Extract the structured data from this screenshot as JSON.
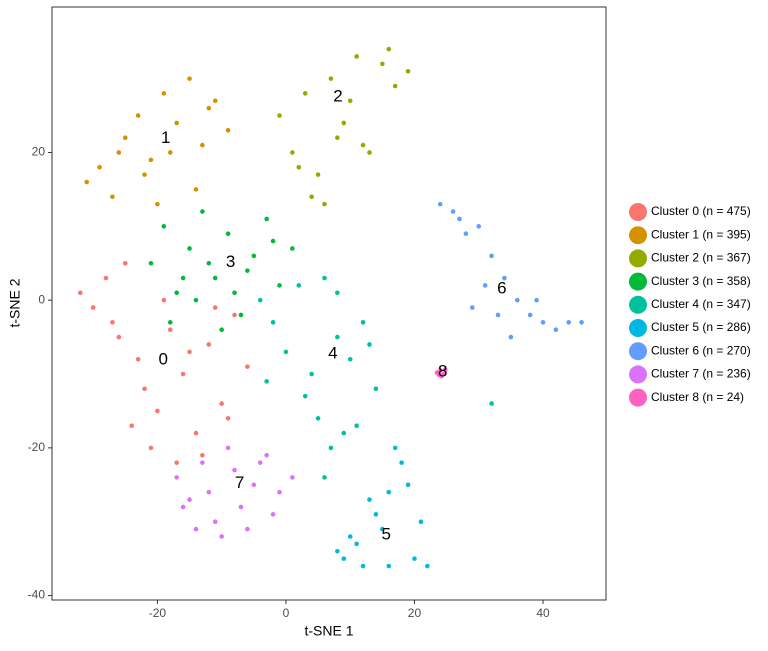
{
  "chart_data": {
    "type": "scatter",
    "x_label": "t-SNE 1",
    "y_label": "t-SNE 2",
    "xlim": [
      -36.4,
      49.8
    ],
    "ylim": [
      -40.6,
      39.7
    ],
    "xticks": [
      -20,
      0,
      20,
      40
    ],
    "yticks": [
      -40,
      -20,
      0,
      20
    ],
    "series": [
      {
        "name": "Cluster 0 (n = 475)",
        "color": "#F8766D",
        "x": [
          -32,
          -30,
          -28,
          -27,
          -25,
          -26,
          -23,
          -22,
          -20,
          -18,
          -16,
          -14,
          -12,
          -10,
          -8,
          -6,
          -21,
          -17,
          -13,
          -9,
          -19,
          -15,
          -11,
          -24
        ],
        "y": [
          1,
          -1,
          3,
          -3,
          5,
          -5,
          -8,
          -12,
          -15,
          -4,
          -10,
          -18,
          -6,
          -14,
          -2,
          -9,
          -20,
          -22,
          -21,
          -16,
          0,
          -7,
          -1,
          -17
        ]
      },
      {
        "name": "Cluster 1 (n = 395)",
        "color": "#D39200",
        "x": [
          -31,
          -29,
          -27,
          -25,
          -23,
          -21,
          -19,
          -17,
          -15,
          -13,
          -11,
          -9,
          -22,
          -18,
          -14,
          -26,
          -20,
          -12
        ],
        "y": [
          16,
          18,
          14,
          22,
          25,
          19,
          28,
          24,
          30,
          21,
          27,
          23,
          17,
          20,
          15,
          20,
          13,
          26
        ]
      },
      {
        "name": "Cluster 2 (n = 367)",
        "color": "#93AA00",
        "x": [
          -1,
          1,
          3,
          5,
          7,
          9,
          11,
          13,
          15,
          17,
          19,
          4,
          8,
          2,
          10,
          6,
          16,
          12
        ],
        "y": [
          25,
          20,
          28,
          17,
          30,
          24,
          33,
          20,
          32,
          29,
          31,
          14,
          22,
          18,
          27,
          13,
          34,
          21
        ]
      },
      {
        "name": "Cluster 3 (n = 358)",
        "color": "#00BA38",
        "x": [
          -21,
          -19,
          -17,
          -15,
          -13,
          -11,
          -9,
          -7,
          -5,
          -3,
          -1,
          1,
          -18,
          -14,
          -10,
          -6,
          -2,
          -12,
          -8,
          -16
        ],
        "y": [
          5,
          10,
          1,
          7,
          12,
          3,
          9,
          -2,
          6,
          11,
          2,
          7,
          -3,
          0,
          -4,
          4,
          8,
          5,
          1,
          3
        ]
      },
      {
        "name": "Cluster 4 (n = 347)",
        "color": "#00C19F",
        "x": [
          -4,
          -2,
          0,
          2,
          4,
          6,
          8,
          10,
          12,
          14,
          -3,
          5,
          9,
          3,
          7,
          11,
          13,
          6,
          8,
          32
        ],
        "y": [
          0,
          -3,
          -7,
          2,
          -10,
          3,
          -5,
          -8,
          -3,
          -12,
          -11,
          -16,
          -18,
          -13,
          -20,
          -17,
          -6,
          -24,
          1,
          -14
        ]
      },
      {
        "name": "Cluster 5 (n = 286)",
        "color": "#00B9E3",
        "x": [
          8,
          10,
          12,
          14,
          16,
          18,
          20,
          22,
          17,
          15,
          13,
          11,
          19,
          21,
          16,
          9
        ],
        "y": [
          -34,
          -32,
          -36,
          -29,
          -26,
          -22,
          -35,
          -36,
          -20,
          -31,
          -27,
          -33,
          -25,
          -30,
          -36,
          -35
        ]
      },
      {
        "name": "Cluster 6 (n = 270)",
        "color": "#619CFF",
        "x": [
          24,
          26,
          28,
          30,
          32,
          34,
          36,
          38,
          40,
          42,
          44,
          46,
          29,
          31,
          35,
          39,
          33,
          27
        ],
        "y": [
          13,
          12,
          9,
          10,
          6,
          3,
          0,
          -2,
          -3,
          -4,
          -3,
          -3,
          -1,
          2,
          -5,
          0,
          -2,
          11
        ]
      },
      {
        "name": "Cluster 7 (n = 236)",
        "color": "#DB72FB",
        "x": [
          -17,
          -15,
          -13,
          -11,
          -9,
          -7,
          -5,
          -3,
          -1,
          1,
          -14,
          -10,
          -6,
          -2,
          -8,
          -12,
          -4,
          -16
        ],
        "y": [
          -24,
          -27,
          -22,
          -30,
          -20,
          -28,
          -25,
          -21,
          -26,
          -24,
          -31,
          -32,
          -31,
          -29,
          -23,
          -26,
          -22,
          -28
        ]
      },
      {
        "name": "Cluster 8 (n = 24)",
        "color": "#FF61C3",
        "x": [
          24,
          24.5,
          23.5,
          24.2,
          24.8,
          23.8
        ],
        "y": [
          -9.5,
          -10,
          -9.8,
          -10.3,
          -9.4,
          -10.1
        ]
      }
    ],
    "annotations": [
      {
        "text": "0",
        "x": -19.1,
        "y": -8.1
      },
      {
        "text": "1",
        "x": -18.7,
        "y": 21.9
      },
      {
        "text": "2",
        "x": 8.1,
        "y": 27.5
      },
      {
        "text": "3",
        "x": -8.6,
        "y": 5.1
      },
      {
        "text": "4",
        "x": 7.3,
        "y": -7.3
      },
      {
        "text": "5",
        "x": 15.6,
        "y": -31.8
      },
      {
        "text": "6",
        "x": 33.6,
        "y": 1.5
      },
      {
        "text": "7",
        "x": -7.2,
        "y": -24.8
      },
      {
        "text": "8",
        "x": 24.4,
        "y": -9.7
      }
    ],
    "legend": "right"
  }
}
